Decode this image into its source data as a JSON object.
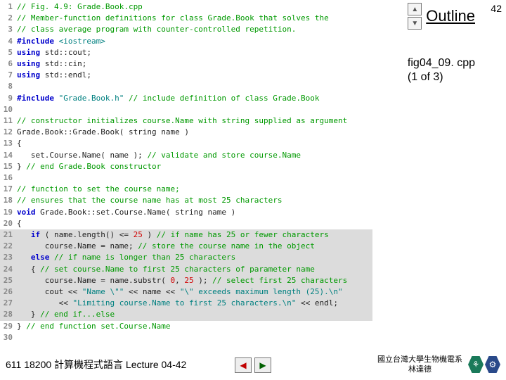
{
  "pageNumber": "42",
  "outline": {
    "title": "Outline",
    "up": "▲",
    "down": "▼"
  },
  "fileRef": {
    "line1": "fig04_09. cpp",
    "line2": "(1 of 3)"
  },
  "footer": {
    "left": "611 18200 計算機程式語言  Lecture 04-42",
    "navLeft": "◀",
    "navRight": "▶",
    "creditLine1": "國立台灣大學生物機電系",
    "creditLine2": "林達德",
    "hex1": "⚘",
    "hex2": "⚙"
  },
  "code": [
    {
      "n": "1",
      "seg": [
        {
          "c": "tok-comment",
          "t": "// Fig. 4.9: Grade.Book.cpp"
        }
      ]
    },
    {
      "n": "2",
      "seg": [
        {
          "c": "tok-comment",
          "t": "// Member-function definitions for class Grade.Book that solves the"
        }
      ]
    },
    {
      "n": "3",
      "seg": [
        {
          "c": "tok-comment",
          "t": "// class average program with counter-controlled repetition."
        }
      ]
    },
    {
      "n": "4",
      "seg": [
        {
          "c": "tok-pp",
          "t": "#include"
        },
        {
          "c": "tok-plain",
          "t": " "
        },
        {
          "c": "tok-string",
          "t": "<iostream>"
        }
      ]
    },
    {
      "n": "5",
      "seg": [
        {
          "c": "tok-keyword",
          "t": "using"
        },
        {
          "c": "tok-plain",
          "t": " std::cout;"
        }
      ]
    },
    {
      "n": "6",
      "seg": [
        {
          "c": "tok-keyword",
          "t": "using"
        },
        {
          "c": "tok-plain",
          "t": " std::cin;"
        }
      ]
    },
    {
      "n": "7",
      "seg": [
        {
          "c": "tok-keyword",
          "t": "using"
        },
        {
          "c": "tok-plain",
          "t": " std::endl;"
        }
      ]
    },
    {
      "n": "8",
      "seg": []
    },
    {
      "n": "9",
      "seg": [
        {
          "c": "tok-pp",
          "t": "#include"
        },
        {
          "c": "tok-plain",
          "t": " "
        },
        {
          "c": "tok-string",
          "t": "\"Grade.Book.h\""
        },
        {
          "c": "tok-plain",
          "t": " "
        },
        {
          "c": "tok-comment",
          "t": "// include definition of class Grade.Book"
        }
      ]
    },
    {
      "n": "10",
      "seg": []
    },
    {
      "n": "11",
      "seg": [
        {
          "c": "tok-comment",
          "t": "// constructor initializes course.Name with string supplied as argument"
        }
      ]
    },
    {
      "n": "12",
      "seg": [
        {
          "c": "tok-plain",
          "t": "Grade.Book::Grade.Book( string name )"
        }
      ]
    },
    {
      "n": "13",
      "seg": [
        {
          "c": "tok-plain",
          "t": "{"
        }
      ]
    },
    {
      "n": "14",
      "seg": [
        {
          "c": "tok-plain",
          "t": "   set.Course.Name( name ); "
        },
        {
          "c": "tok-comment",
          "t": "// validate and store course.Name"
        }
      ]
    },
    {
      "n": "15",
      "seg": [
        {
          "c": "tok-plain",
          "t": "} "
        },
        {
          "c": "tok-comment",
          "t": "// end Grade.Book constructor"
        }
      ]
    },
    {
      "n": "16",
      "seg": []
    },
    {
      "n": "17",
      "seg": [
        {
          "c": "tok-comment",
          "t": "// function to set the course name;"
        }
      ]
    },
    {
      "n": "18",
      "seg": [
        {
          "c": "tok-comment",
          "t": "// ensures that the course name has at most 25 characters"
        }
      ]
    },
    {
      "n": "19",
      "seg": [
        {
          "c": "tok-keyword",
          "t": "void"
        },
        {
          "c": "tok-plain",
          "t": " Grade.Book::set.Course.Name( string name )"
        }
      ]
    },
    {
      "n": "20",
      "seg": [
        {
          "c": "tok-plain",
          "t": "{"
        }
      ]
    },
    {
      "n": "21",
      "hl": true,
      "seg": [
        {
          "c": "tok-plain",
          "t": "   "
        },
        {
          "c": "tok-keyword",
          "t": "if"
        },
        {
          "c": "tok-plain",
          "t": " ( name.length() <= "
        },
        {
          "c": "tok-number",
          "t": "25"
        },
        {
          "c": "tok-plain",
          "t": " ) "
        },
        {
          "c": "tok-comment",
          "t": "// if name has 25 or fewer characters"
        }
      ]
    },
    {
      "n": "22",
      "hl": true,
      "seg": [
        {
          "c": "tok-plain",
          "t": "      course.Name = name; "
        },
        {
          "c": "tok-comment",
          "t": "// store the course name in the object"
        }
      ]
    },
    {
      "n": "23",
      "hl": true,
      "seg": [
        {
          "c": "tok-plain",
          "t": "   "
        },
        {
          "c": "tok-keyword",
          "t": "else"
        },
        {
          "c": "tok-plain",
          "t": " "
        },
        {
          "c": "tok-comment",
          "t": "// if name is longer than 25 characters"
        }
      ]
    },
    {
      "n": "24",
      "hl": true,
      "seg": [
        {
          "c": "tok-plain",
          "t": "   { "
        },
        {
          "c": "tok-comment",
          "t": "// set course.Name to first 25 characters of parameter name"
        }
      ]
    },
    {
      "n": "25",
      "hl": true,
      "seg": [
        {
          "c": "tok-plain",
          "t": "      course.Name = name.substr( "
        },
        {
          "c": "tok-number",
          "t": "0"
        },
        {
          "c": "tok-plain",
          "t": ", "
        },
        {
          "c": "tok-number",
          "t": "25"
        },
        {
          "c": "tok-plain",
          "t": " ); "
        },
        {
          "c": "tok-comment",
          "t": "// select first 25 characters"
        }
      ]
    },
    {
      "n": "26",
      "hl": true,
      "seg": [
        {
          "c": "tok-plain",
          "t": "      cout << "
        },
        {
          "c": "tok-string",
          "t": "\"Name \\\"\""
        },
        {
          "c": "tok-plain",
          "t": " << name << "
        },
        {
          "c": "tok-string",
          "t": "\"\\\" exceeds maximum length (25).\\n\""
        }
      ]
    },
    {
      "n": "27",
      "hl": true,
      "seg": [
        {
          "c": "tok-plain",
          "t": "         << "
        },
        {
          "c": "tok-string",
          "t": "\"Limiting course.Name to first 25 characters.\\n\""
        },
        {
          "c": "tok-plain",
          "t": " << endl;"
        }
      ]
    },
    {
      "n": "28",
      "hl": true,
      "seg": [
        {
          "c": "tok-plain",
          "t": "   } "
        },
        {
          "c": "tok-comment",
          "t": "// end if...else"
        }
      ]
    },
    {
      "n": "29",
      "seg": [
        {
          "c": "tok-plain",
          "t": "} "
        },
        {
          "c": "tok-comment",
          "t": "// end function set.Course.Name"
        }
      ]
    },
    {
      "n": "30",
      "seg": []
    }
  ]
}
